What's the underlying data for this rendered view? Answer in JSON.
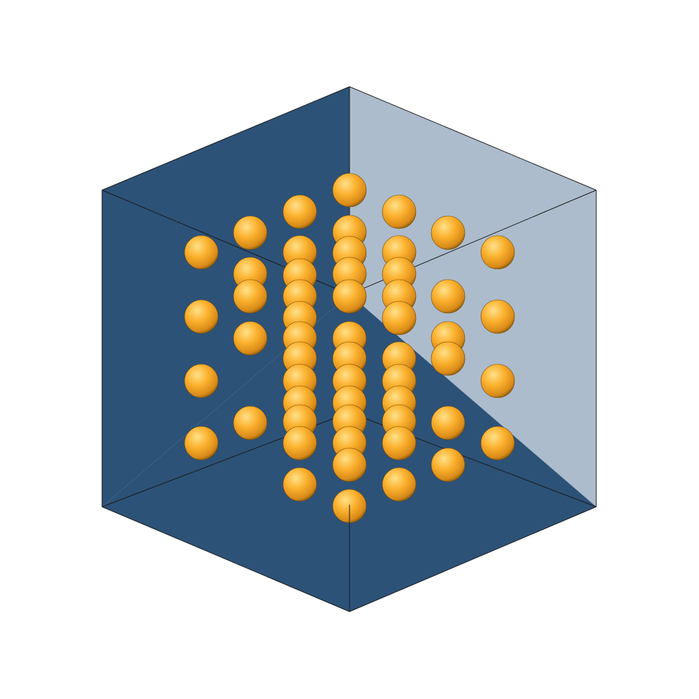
{
  "scene": {
    "description_name": "crystal-lattice-cube",
    "colors": {
      "background": "#ffffff",
      "face_dark": "#2d5278",
      "face_light": "#acbccc",
      "edge": "#1a1a1a",
      "sphere_highlight": "#ffe18a",
      "sphere_base": "#fbb12e",
      "sphere_shadow": "#8a5a0c"
    },
    "atom_count": 56
  }
}
